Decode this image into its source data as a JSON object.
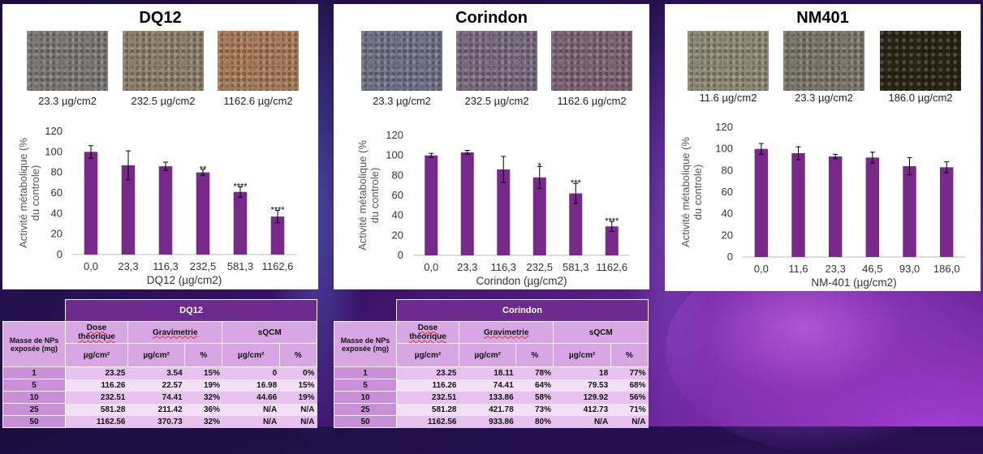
{
  "panels": [
    {
      "title": "DQ12",
      "thumbs": [
        {
          "caption": "23.3 µg/cm2",
          "color": "#7c7a78"
        },
        {
          "caption": "232.5 µg/cm2",
          "color": "#8e8069"
        },
        {
          "caption": "1162.6 µg/cm2",
          "color": "#a87b5a"
        }
      ]
    },
    {
      "title": "Corindon",
      "thumbs": [
        {
          "caption": "23.3 µg/cm2",
          "color": "#6f7186"
        },
        {
          "caption": "232.5 µg/cm2",
          "color": "#7a6a80"
        },
        {
          "caption": "1162.6 µg/cm2",
          "color": "#7d6473"
        }
      ]
    },
    {
      "title": "NM401",
      "thumbs": [
        {
          "caption": "11.6 µg/cm2",
          "color": "#8f8a77"
        },
        {
          "caption": "23.3 µg/cm2",
          "color": "#7d776a"
        },
        {
          "caption": "186.0 µg/cm2",
          "color": "#2b2414"
        }
      ]
    }
  ],
  "chart_data": [
    {
      "type": "bar",
      "categories": [
        "0,0",
        "23,3",
        "116,3",
        "232,5",
        "581,3",
        "1162,6"
      ],
      "values": [
        100,
        87,
        86,
        80,
        61,
        37
      ],
      "errors": [
        6,
        14,
        4,
        3,
        5,
        6
      ],
      "significance": [
        "",
        "",
        "",
        "**",
        "****",
        "****"
      ],
      "xlabel": "DQ12 (µg/cm2)",
      "ylabel": "Activité métabolique (% du controle)",
      "yticks": [
        "0",
        "20",
        "40",
        "60",
        "80",
        "100",
        "120"
      ],
      "ylim": [
        0,
        120
      ],
      "color": "#772a8a"
    },
    {
      "type": "bar",
      "categories": [
        "0,0",
        "23,3",
        "116,3",
        "232,5",
        "581,3",
        "1162,6"
      ],
      "values": [
        100,
        103,
        86,
        78,
        62,
        29
      ],
      "errors": [
        2,
        2,
        13,
        11,
        10,
        5
      ],
      "significance": [
        "",
        "",
        "",
        "*",
        "***",
        "****"
      ],
      "xlabel": "Corindon (µg/cm2)",
      "ylabel": "Activité métabolique (% du controle)",
      "yticks": [
        "0",
        "20",
        "40",
        "60",
        "80",
        "100",
        "120"
      ],
      "ylim": [
        0,
        120
      ],
      "color": "#772a8a"
    },
    {
      "type": "bar",
      "categories": [
        "0,0",
        "11,6",
        "23,3",
        "46,5",
        "93,0",
        "186,0"
      ],
      "values": [
        100,
        96,
        93,
        92,
        84,
        83
      ],
      "errors": [
        5,
        6,
        2,
        5,
        8,
        5
      ],
      "significance": [
        "",
        "",
        "",
        "",
        "",
        ""
      ],
      "xlabel": "NM-401 (µg/cm2)",
      "ylabel": "Activité métabolique (% du controle)",
      "yticks": [
        "0",
        "20",
        "40",
        "60",
        "80",
        "100",
        "120"
      ],
      "ylim": [
        0,
        120
      ],
      "color": "#772a8a"
    }
  ],
  "tables": [
    {
      "title": "DQ12",
      "mass_header": "Masse de NPs exposée (mg)",
      "dose_header": "Dose théorique",
      "grav_header": "Gravimetrie",
      "sqcm_header": "sQCM",
      "unit_header": "µg/cm²",
      "pct_header": "%",
      "rows": [
        [
          "1",
          "23.25",
          "3.54",
          "15%",
          "0",
          "0%"
        ],
        [
          "5",
          "116.26",
          "22.57",
          "19%",
          "16.98",
          "15%"
        ],
        [
          "10",
          "232.51",
          "74.41",
          "32%",
          "44.66",
          "19%"
        ],
        [
          "25",
          "581.28",
          "211.42",
          "36%",
          "N/A",
          "N/A"
        ],
        [
          "50",
          "1162.56",
          "370.73",
          "32%",
          "N/A",
          "N/A"
        ]
      ]
    },
    {
      "title": "Corindon",
      "mass_header": "Masse de NPs exposée (mg)",
      "dose_header": "Dose théorique",
      "grav_header": "Gravimetrie",
      "sqcm_header": "sQCM",
      "unit_header": "µg/cm²",
      "pct_header": "%",
      "rows": [
        [
          "1",
          "23.25",
          "18.11",
          "78%",
          "18",
          "77%"
        ],
        [
          "5",
          "116.26",
          "74.41",
          "64%",
          "79.53",
          "68%"
        ],
        [
          "10",
          "232.51",
          "133.86",
          "58%",
          "129.92",
          "56%"
        ],
        [
          "25",
          "581.28",
          "421.78",
          "73%",
          "412.73",
          "71%"
        ],
        [
          "50",
          "1162.56",
          "933.86",
          "80%",
          "N/A",
          "N/A"
        ]
      ]
    }
  ]
}
